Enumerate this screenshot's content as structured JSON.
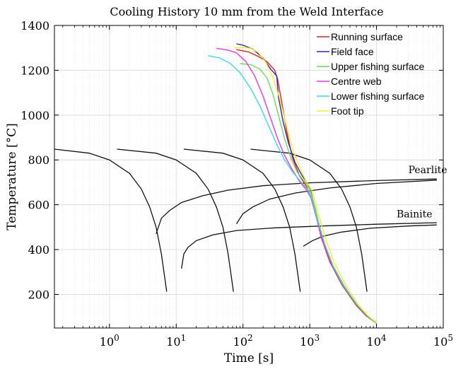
{
  "chart_data": {
    "type": "line",
    "title": "Cooling History 10 mm from the Weld Interface",
    "xlabel": "Time [s]",
    "ylabel": "Temperature [°C]",
    "xscale": "log",
    "xlim": [
      0.15,
      100000
    ],
    "ylim": [
      50,
      1400
    ],
    "grid": true,
    "legend_position": "top-right",
    "xticks": [
      {
        "value": 1,
        "base": "10",
        "exp": "0"
      },
      {
        "value": 10,
        "base": "10",
        "exp": "1"
      },
      {
        "value": 100,
        "base": "10",
        "exp": "2"
      },
      {
        "value": 1000,
        "base": "10",
        "exp": "3"
      },
      {
        "value": 10000,
        "base": "10",
        "exp": "4"
      },
      {
        "value": 100000,
        "base": "10",
        "exp": "5"
      }
    ],
    "yticks": [
      200,
      400,
      600,
      800,
      1000,
      1200,
      1400
    ],
    "series": [
      {
        "name": "Running surface",
        "color": "#ff1a1a",
        "points": [
          [
            80,
            1292
          ],
          [
            120,
            1282
          ],
          [
            170,
            1262
          ],
          [
            230,
            1238
          ],
          [
            300,
            1200
          ],
          [
            330,
            1160
          ],
          [
            380,
            1060
          ],
          [
            450,
            930
          ],
          [
            550,
            810
          ],
          [
            700,
            730
          ],
          [
            900,
            680
          ],
          [
            1000,
            650
          ],
          [
            1200,
            570
          ],
          [
            1500,
            450
          ],
          [
            2000,
            345
          ],
          [
            3000,
            245
          ],
          [
            5000,
            150
          ],
          [
            7000,
            105
          ],
          [
            10000,
            70
          ]
        ]
      },
      {
        "name": "Field face",
        "color": "#1f2ad8",
        "points": [
          [
            80,
            1318
          ],
          [
            100,
            1312
          ],
          [
            140,
            1295
          ],
          [
            200,
            1255
          ],
          [
            260,
            1205
          ],
          [
            320,
            1175
          ],
          [
            340,
            1080
          ],
          [
            400,
            970
          ],
          [
            480,
            875
          ],
          [
            600,
            790
          ],
          [
            750,
            735
          ],
          [
            950,
            690
          ],
          [
            1050,
            655
          ],
          [
            1250,
            560
          ],
          [
            1600,
            440
          ],
          [
            2200,
            330
          ],
          [
            3300,
            235
          ],
          [
            5200,
            150
          ],
          [
            7200,
            105
          ],
          [
            10000,
            72
          ]
        ]
      },
      {
        "name": "Upper fishing surface",
        "color": "#66dd55",
        "points": [
          [
            90,
            1230
          ],
          [
            130,
            1225
          ],
          [
            180,
            1205
          ],
          [
            230,
            1165
          ],
          [
            280,
            1095
          ],
          [
            340,
            1000
          ],
          [
            420,
            895
          ],
          [
            520,
            810
          ],
          [
            650,
            745
          ],
          [
            850,
            700
          ],
          [
            1000,
            670
          ],
          [
            1200,
            590
          ],
          [
            1500,
            465
          ],
          [
            2000,
            355
          ],
          [
            3000,
            250
          ],
          [
            5000,
            155
          ],
          [
            7000,
            110
          ],
          [
            10000,
            75
          ]
        ]
      },
      {
        "name": "Centre web",
        "color": "#ee33ee",
        "points": [
          [
            40,
            1298
          ],
          [
            60,
            1290
          ],
          [
            80,
            1278
          ],
          [
            110,
            1240
          ],
          [
            150,
            1175
          ],
          [
            200,
            1085
          ],
          [
            260,
            985
          ],
          [
            330,
            895
          ],
          [
            420,
            820
          ],
          [
            550,
            755
          ],
          [
            700,
            705
          ],
          [
            900,
            665
          ],
          [
            1050,
            630
          ],
          [
            1250,
            545
          ],
          [
            1600,
            430
          ],
          [
            2200,
            325
          ],
          [
            3300,
            232
          ],
          [
            5200,
            150
          ],
          [
            7200,
            106
          ],
          [
            10000,
            72
          ]
        ]
      },
      {
        "name": "Lower fishing surface",
        "color": "#33dddd",
        "points": [
          [
            30,
            1265
          ],
          [
            45,
            1255
          ],
          [
            65,
            1230
          ],
          [
            90,
            1190
          ],
          [
            130,
            1120
          ],
          [
            180,
            1040
          ],
          [
            240,
            955
          ],
          [
            320,
            870
          ],
          [
            420,
            800
          ],
          [
            560,
            745
          ],
          [
            750,
            700
          ],
          [
            950,
            665
          ],
          [
            1100,
            620
          ],
          [
            1300,
            535
          ],
          [
            1700,
            420
          ],
          [
            2300,
            318
          ],
          [
            3400,
            228
          ],
          [
            5300,
            148
          ],
          [
            7300,
            104
          ],
          [
            10000,
            70
          ]
        ]
      },
      {
        "name": "Foot tip",
        "color": "#f2f21a",
        "points": [
          [
            75,
            1300
          ],
          [
            100,
            1302
          ],
          [
            130,
            1298
          ],
          [
            170,
            1280
          ],
          [
            220,
            1235
          ],
          [
            280,
            1170
          ],
          [
            350,
            1080
          ],
          [
            440,
            960
          ],
          [
            560,
            845
          ],
          [
            700,
            770
          ],
          [
            880,
            705
          ],
          [
            1100,
            660
          ],
          [
            1300,
            575
          ],
          [
            1700,
            455
          ],
          [
            2300,
            345
          ],
          [
            3400,
            245
          ],
          [
            5300,
            155
          ],
          [
            7300,
            108
          ],
          [
            10000,
            72
          ]
        ]
      }
    ],
    "cct_curves": [
      {
        "points": [
          [
            0.15,
            848
          ],
          [
            0.5,
            830
          ],
          [
            1,
            800
          ],
          [
            2,
            740
          ],
          [
            3,
            670
          ],
          [
            4,
            590
          ],
          [
            5,
            500
          ],
          [
            6,
            380
          ],
          [
            7.2,
            212
          ]
        ]
      },
      {
        "points": [
          [
            1.3,
            848
          ],
          [
            5,
            830
          ],
          [
            10,
            800
          ],
          [
            20,
            740
          ],
          [
            30,
            670
          ],
          [
            40,
            590
          ],
          [
            50,
            500
          ],
          [
            60,
            380
          ],
          [
            72,
            212
          ]
        ]
      },
      {
        "points": [
          [
            13,
            848
          ],
          [
            50,
            830
          ],
          [
            100,
            800
          ],
          [
            200,
            740
          ],
          [
            300,
            670
          ],
          [
            400,
            590
          ],
          [
            500,
            500
          ],
          [
            600,
            380
          ],
          [
            720,
            212
          ]
        ]
      },
      {
        "points": [
          [
            130,
            848
          ],
          [
            500,
            830
          ],
          [
            1000,
            800
          ],
          [
            2000,
            740
          ],
          [
            3000,
            670
          ],
          [
            4000,
            590
          ],
          [
            5000,
            500
          ],
          [
            6000,
            380
          ],
          [
            7200,
            212
          ]
        ]
      }
    ],
    "transformation_curves": [
      {
        "points": [
          [
            5,
            470
          ],
          [
            6,
            540
          ],
          [
            8,
            575
          ],
          [
            12,
            610
          ],
          [
            25,
            640
          ],
          [
            60,
            665
          ],
          [
            200,
            685
          ],
          [
            1000,
            698
          ],
          [
            10000,
            708
          ],
          [
            80000,
            715
          ]
        ]
      },
      {
        "points": [
          [
            80,
            515
          ],
          [
            100,
            560
          ],
          [
            140,
            590
          ],
          [
            250,
            625
          ],
          [
            600,
            652
          ],
          [
            2000,
            675
          ],
          [
            10000,
            695
          ],
          [
            80000,
            710
          ]
        ]
      },
      {
        "points": [
          [
            12,
            315
          ],
          [
            13,
            380
          ],
          [
            15,
            410
          ],
          [
            20,
            440
          ],
          [
            35,
            465
          ],
          [
            80,
            485
          ],
          [
            300,
            497
          ],
          [
            1500,
            505
          ],
          [
            10000,
            513
          ],
          [
            80000,
            520
          ]
        ]
      },
      {
        "points": [
          [
            800,
            415
          ],
          [
            1100,
            440
          ],
          [
            1600,
            460
          ],
          [
            3000,
            478
          ],
          [
            8000,
            495
          ],
          [
            30000,
            505
          ],
          [
            80000,
            510
          ]
        ]
      }
    ],
    "annotations": [
      {
        "text": "Pearlite",
        "x": 30000,
        "y": 740
      },
      {
        "text": "Bainite",
        "x": 20000,
        "y": 543
      }
    ]
  }
}
